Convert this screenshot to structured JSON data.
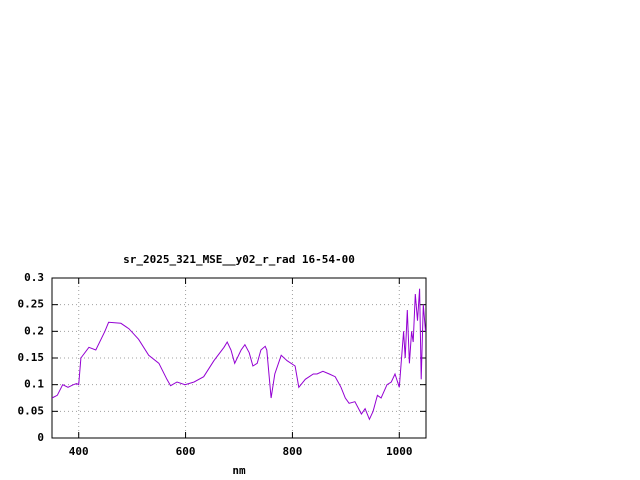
{
  "chart_data": {
    "type": "line",
    "title": "sr_2025_321_MSE__y02_r_rad 16-54-00",
    "xlabel": "nm",
    "xlim": [
      350,
      1050
    ],
    "xticks": [
      400,
      600,
      800,
      1000
    ],
    "ylim": [
      0,
      0.3
    ],
    "yticks": [
      0,
      0.05,
      0.1,
      0.15,
      0.2,
      0.25,
      0.3
    ],
    "grid": true,
    "series": [
      {
        "color": "#9400d3",
        "x": [
          350,
          360,
          370,
          380,
          390,
          396,
          400,
          404,
          419,
          432,
          449,
          456,
          479,
          494,
          512,
          531,
          550,
          565,
          572,
          584,
          599,
          616,
          634,
          653,
          672,
          678,
          685,
          692,
          704,
          711,
          719,
          726,
          734,
          741,
          749,
          752,
          760,
          767,
          779,
          790,
          805,
          812,
          824,
          839,
          846,
          857,
          869,
          880,
          891,
          899,
          906,
          917,
          929,
          936,
          944,
          951,
          959,
          966,
          977,
          985,
          992,
          1000,
          1008,
          1011,
          1015,
          1019,
          1023,
          1026,
          1030,
          1034,
          1038,
          1041,
          1045,
          1049
        ],
        "values": [
          0.075,
          0.08,
          0.1,
          0.095,
          0.1,
          0.102,
          0.1,
          0.15,
          0.17,
          0.165,
          0.2,
          0.217,
          0.215,
          0.205,
          0.185,
          0.155,
          0.14,
          0.11,
          0.098,
          0.105,
          0.1,
          0.105,
          0.115,
          0.145,
          0.17,
          0.18,
          0.165,
          0.14,
          0.165,
          0.175,
          0.16,
          0.135,
          0.14,
          0.165,
          0.172,
          0.165,
          0.075,
          0.12,
          0.155,
          0.145,
          0.135,
          0.095,
          0.11,
          0.12,
          0.12,
          0.125,
          0.12,
          0.115,
          0.095,
          0.075,
          0.065,
          0.068,
          0.045,
          0.055,
          0.035,
          0.05,
          0.08,
          0.075,
          0.1,
          0.105,
          0.12,
          0.095,
          0.2,
          0.15,
          0.24,
          0.14,
          0.2,
          0.18,
          0.27,
          0.22,
          0.28,
          0.11,
          0.25,
          0.2
        ]
      }
    ]
  }
}
